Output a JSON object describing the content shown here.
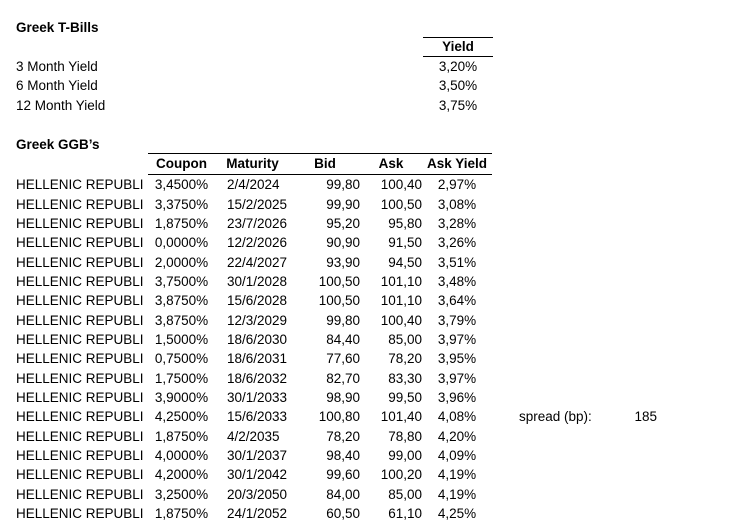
{
  "page": {
    "background": "#ffffff",
    "text_color": "#000000",
    "border_color": "#000000"
  },
  "tbills": {
    "title": "Greek T-Bills",
    "yield_header": "Yield",
    "rows": [
      {
        "label": "3 Month Yield",
        "value": "3,20%"
      },
      {
        "label": "6 Month Yield",
        "value": "3,50%"
      },
      {
        "label": "12 Month Yield",
        "value": "3,75%"
      }
    ]
  },
  "ggbs": {
    "title": "Greek GGB’s",
    "headers": {
      "name": "",
      "coupon": "Coupon",
      "maturity": "Maturity",
      "bid": "Bid",
      "ask": "Ask",
      "ask_yield": "Ask Yield"
    },
    "rows": [
      {
        "name": "HELLENIC REPUBLI",
        "coupon": "3,4500%",
        "maturity": "2/4/2024",
        "bid": "99,80",
        "ask": "100,40",
        "ask_yield": "2,97%"
      },
      {
        "name": "HELLENIC REPUBLI",
        "coupon": "3,3750%",
        "maturity": "15/2/2025",
        "bid": "99,90",
        "ask": "100,50",
        "ask_yield": "3,08%"
      },
      {
        "name": "HELLENIC REPUBLI",
        "coupon": "1,8750%",
        "maturity": "23/7/2026",
        "bid": "95,20",
        "ask": "95,80",
        "ask_yield": "3,28%"
      },
      {
        "name": "HELLENIC REPUBLI",
        "coupon": "0,0000%",
        "maturity": "12/2/2026",
        "bid": "90,90",
        "ask": "91,50",
        "ask_yield": "3,26%"
      },
      {
        "name": "HELLENIC REPUBLI",
        "coupon": "2,0000%",
        "maturity": "22/4/2027",
        "bid": "93,90",
        "ask": "94,50",
        "ask_yield": "3,51%"
      },
      {
        "name": "HELLENIC REPUBLI",
        "coupon": "3,7500%",
        "maturity": "30/1/2028",
        "bid": "100,50",
        "ask": "101,10",
        "ask_yield": "3,48%"
      },
      {
        "name": "HELLENIC REPUBLI",
        "coupon": "3,8750%",
        "maturity": "15/6/2028",
        "bid": "100,50",
        "ask": "101,10",
        "ask_yield": "3,64%"
      },
      {
        "name": "HELLENIC REPUBLI",
        "coupon": "3,8750%",
        "maturity": "12/3/2029",
        "bid": "99,80",
        "ask": "100,40",
        "ask_yield": "3,79%"
      },
      {
        "name": "HELLENIC REPUBLI",
        "coupon": "1,5000%",
        "maturity": "18/6/2030",
        "bid": "84,40",
        "ask": "85,00",
        "ask_yield": "3,97%"
      },
      {
        "name": "HELLENIC REPUBLI",
        "coupon": "0,7500%",
        "maturity": "18/6/2031",
        "bid": "77,60",
        "ask": "78,20",
        "ask_yield": "3,95%"
      },
      {
        "name": "HELLENIC REPUBLI",
        "coupon": "1,7500%",
        "maturity": "18/6/2032",
        "bid": "82,70",
        "ask": "83,30",
        "ask_yield": "3,97%"
      },
      {
        "name": "HELLENIC REPUBLI",
        "coupon": "3,9000%",
        "maturity": "30/1/2033",
        "bid": "98,90",
        "ask": "99,50",
        "ask_yield": "3,96%"
      },
      {
        "name": "HELLENIC REPUBLI",
        "coupon": "4,2500%",
        "maturity": "15/6/2033",
        "bid": "100,80",
        "ask": "101,40",
        "ask_yield": "4,08%"
      },
      {
        "name": "HELLENIC REPUBLI",
        "coupon": "1,8750%",
        "maturity": "4/2/2035",
        "bid": "78,20",
        "ask": "78,80",
        "ask_yield": "4,20%"
      },
      {
        "name": "HELLENIC REPUBLI",
        "coupon": "4,0000%",
        "maturity": "30/1/2037",
        "bid": "98,40",
        "ask": "99,00",
        "ask_yield": "4,09%"
      },
      {
        "name": "HELLENIC REPUBLI",
        "coupon": "4,2000%",
        "maturity": "30/1/2042",
        "bid": "99,60",
        "ask": "100,20",
        "ask_yield": "4,19%"
      },
      {
        "name": "HELLENIC REPUBLI",
        "coupon": "3,2500%",
        "maturity": "20/3/2050",
        "bid": "84,00",
        "ask": "85,00",
        "ask_yield": "4,19%"
      },
      {
        "name": "HELLENIC REPUBLI",
        "coupon": "1,8750%",
        "maturity": "24/1/2052",
        "bid": "60,50",
        "ask": "61,10",
        "ask_yield": "4,25%"
      }
    ]
  },
  "spread": {
    "label": "spread (bp):",
    "value": "185",
    "row_index": 12
  }
}
